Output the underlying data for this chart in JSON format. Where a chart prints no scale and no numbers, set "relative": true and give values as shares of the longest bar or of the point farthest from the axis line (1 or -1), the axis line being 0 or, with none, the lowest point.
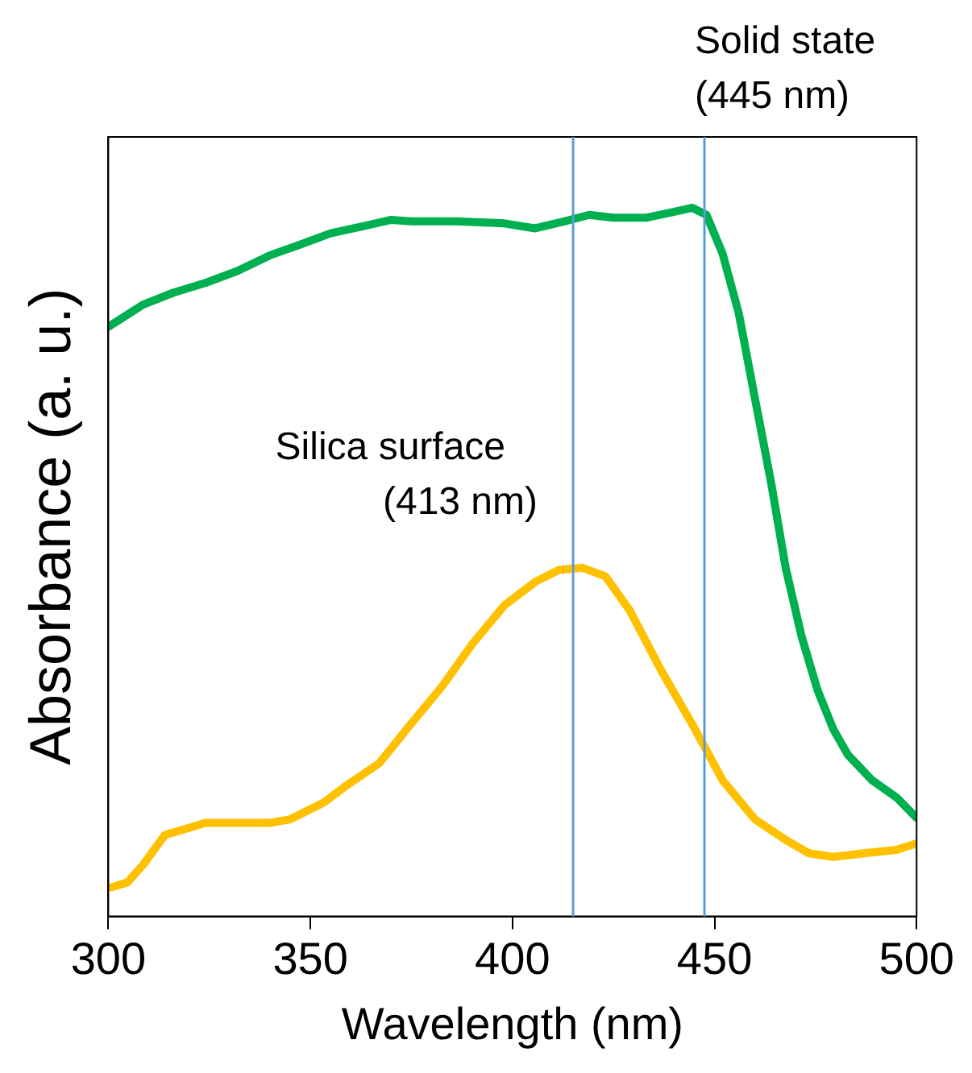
{
  "chart_data": {
    "type": "line",
    "relative": true,
    "xlabel": "Wavelength (nm)",
    "ylabel": "Absorbance (a. u.)",
    "xlim": [
      300,
      500
    ],
    "xticks": [
      300,
      350,
      400,
      450,
      500
    ],
    "grid": false,
    "legend": false,
    "marker": "none",
    "line_style": "solid",
    "series": [
      {
        "color": "#00b050",
        "x": [
          300,
          308.5,
          316,
          324,
          332,
          340,
          347,
          355,
          363,
          370,
          375,
          386,
          398,
          405.6,
          413,
          419,
          425,
          433,
          440.5,
          444.5,
          448,
          452,
          456,
          460,
          464,
          467.6,
          471.5,
          475.5,
          479.4,
          483,
          489,
          495,
          500
        ],
        "values": [
          0.832,
          0.863,
          0.88,
          0.894,
          0.911,
          0.933,
          0.947,
          0.964,
          0.974,
          0.983,
          0.981,
          0.981,
          0.978,
          0.971,
          0.981,
          0.99,
          0.986,
          0.986,
          0.995,
          1,
          0.99,
          0.935,
          0.851,
          0.731,
          0.612,
          0.492,
          0.396,
          0.319,
          0.264,
          0.228,
          0.192,
          0.168,
          0.139
        ]
      },
      {
        "color": "#ffc000",
        "x": [
          300.8,
          304.7,
          308.5,
          314,
          320,
          324,
          332,
          340,
          345,
          353.4,
          359,
          367,
          374.8,
          382.5,
          390,
          398,
          405.6,
          411.5,
          417.3,
          423,
          429,
          436.7,
          444.5,
          452,
          460,
          467.6,
          473.4,
          479.4,
          487,
          495,
          500
        ],
        "values": [
          0.041,
          0.048,
          0.072,
          0.115,
          0.125,
          0.132,
          0.132,
          0.132,
          0.137,
          0.161,
          0.185,
          0.216,
          0.271,
          0.324,
          0.384,
          0.439,
          0.472,
          0.489,
          0.492,
          0.48,
          0.432,
          0.348,
          0.271,
          0.192,
          0.137,
          0.108,
          0.089,
          0.084,
          0.089,
          0.094,
          0.103
        ]
      }
    ],
    "ref_lines": [
      {
        "axis": "x",
        "value": 415,
        "label": "Silica surface\n(413 nm)",
        "color": "#5b9bd5"
      },
      {
        "axis": "x",
        "value": 447.5,
        "label": "Solid state\n(445 nm)",
        "color": "#5b9bd5"
      }
    ]
  }
}
